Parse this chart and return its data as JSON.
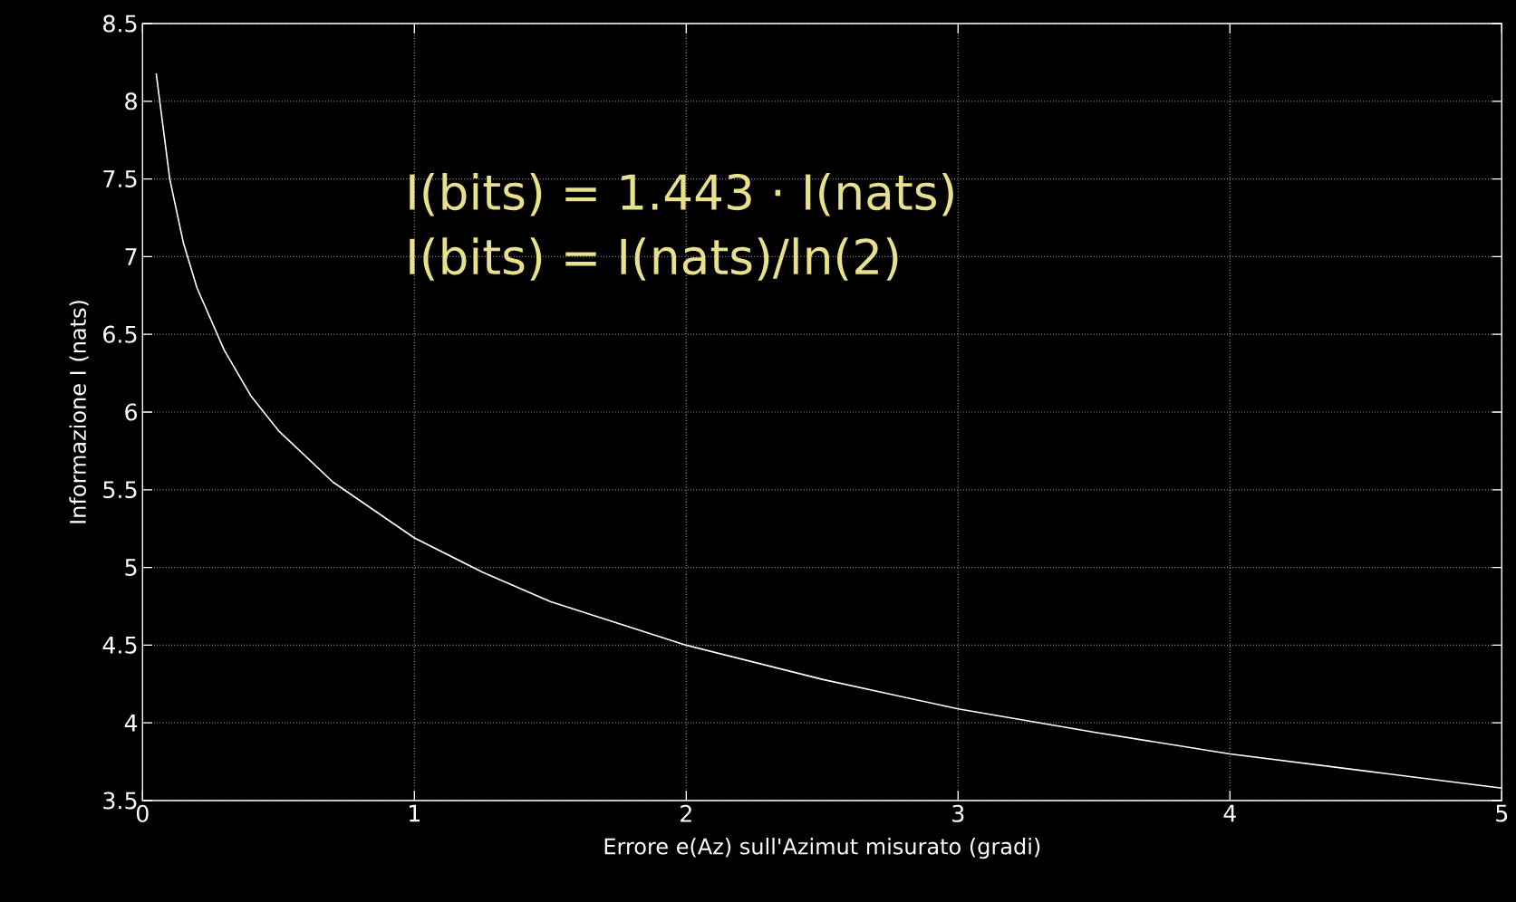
{
  "chart_data": {
    "type": "line",
    "xlabel": "Errore e(Az) sull'Azimut misurato (gradi)",
    "ylabel": "Informazione I (nats)",
    "annotations": [
      "I(bits) = 1.443 · I(nats)",
      "I(bits) = I(nats)/ln(2)"
    ],
    "x": [
      0.05,
      0.1,
      0.15,
      0.2,
      0.3,
      0.4,
      0.5,
      0.7,
      1,
      1.25,
      1.5,
      2,
      2.5,
      3,
      3.5,
      4,
      4.5,
      5
    ],
    "series": [
      {
        "color": "#ffffff",
        "values": [
          8.18,
          7.5,
          7.09,
          6.8,
          6.4,
          6.1,
          5.88,
          5.55,
          5.19,
          4.97,
          4.78,
          4.5,
          4.28,
          4.09,
          3.94,
          3.8,
          3.69,
          3.58
        ]
      }
    ],
    "xlim": [
      0,
      5
    ],
    "ylim": [
      3.5,
      8.5
    ],
    "xticks": [
      0,
      1,
      2,
      3,
      4,
      5
    ],
    "yticks": [
      3.5,
      4,
      4.5,
      5,
      5.5,
      6,
      6.5,
      7,
      7.5,
      8,
      8.5
    ],
    "grid": true,
    "marker": "none",
    "line_style": "solid"
  }
}
